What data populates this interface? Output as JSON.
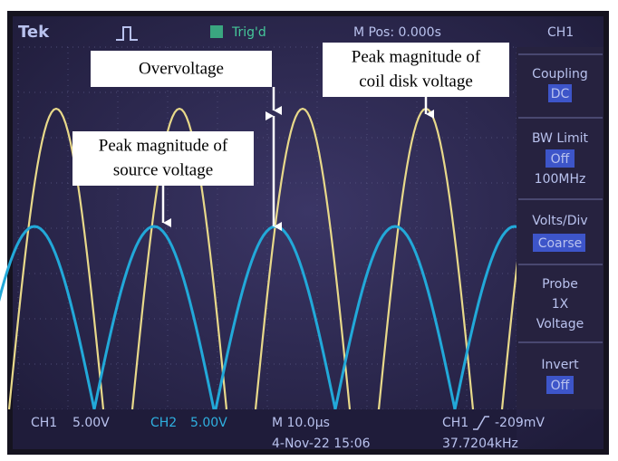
{
  "top_bar": {
    "brand": "Tek",
    "trigger": "Trig'd",
    "position": "M Pos: 0.000s",
    "channel": "CH1"
  },
  "menu": {
    "coupling": {
      "label": "Coupling",
      "value": "DC"
    },
    "bw_limit": {
      "label": "BW Limit",
      "value": "Off",
      "extra": "100MHz"
    },
    "volts_div": {
      "label": "Volts/Div",
      "value": "Coarse"
    },
    "probe": {
      "label": "Probe",
      "value": "1X",
      "extra": "Voltage"
    },
    "invert": {
      "label": "Invert",
      "value": "Off"
    }
  },
  "bottom_bar": {
    "ch1": "CH1",
    "ch1_scale": "5.00V",
    "ch2": "CH2",
    "ch2_scale": "5.00V",
    "timebase": "M 10.0µs",
    "trigger_channel": "CH1",
    "trigger_level": "-209mV",
    "datetime": "4-Nov-22 15:06",
    "frequency": "37.7204kHz"
  },
  "annotations": {
    "overvoltage": "Overvoltage",
    "coil_peak": [
      "Peak magnitude of",
      "coil disk voltage"
    ],
    "source_peak": [
      "Peak magnitude of",
      "source voltage"
    ]
  }
}
